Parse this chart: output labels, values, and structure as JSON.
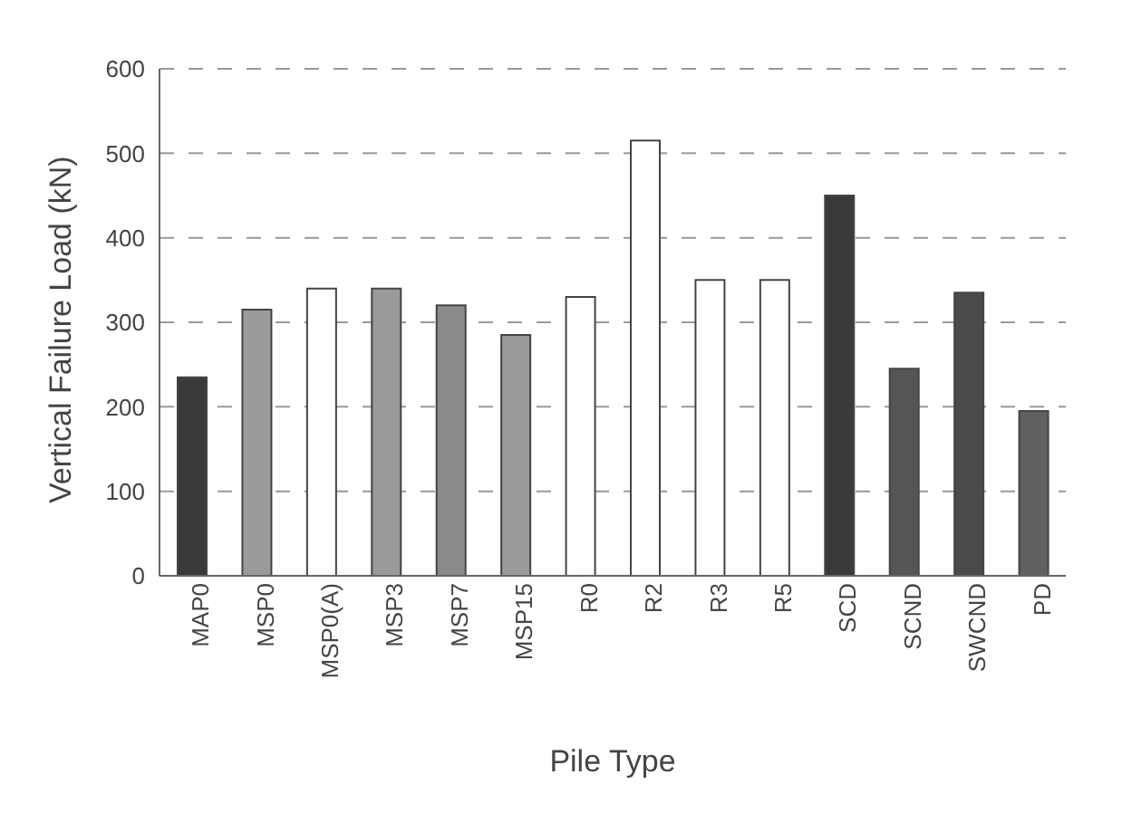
{
  "chart_data": {
    "type": "bar",
    "xlabel": "Pile Type",
    "ylabel": "Vertical Failure Load (kN)",
    "categories": [
      "MAP0",
      "MSP0",
      "MSP0(A)",
      "MSP3",
      "MSP7",
      "MSP15",
      "R0",
      "R2",
      "R3",
      "R5",
      "SCD",
      "SCND",
      "SWCND",
      "PD"
    ],
    "values": [
      235,
      315,
      340,
      340,
      320,
      285,
      330,
      515,
      350,
      350,
      450,
      245,
      335,
      195
    ],
    "colors": [
      "#3a3a3a",
      "#9a9a9a",
      "#ffffff",
      "#9a9a9a",
      "#8a8a8a",
      "#9a9a9a",
      "#ffffff",
      "#ffffff",
      "#ffffff",
      "#ffffff",
      "#3a3a3a",
      "#555555",
      "#4a4a4a",
      "#606060"
    ],
    "ylim": [
      0,
      600
    ],
    "yticks": [
      0,
      100,
      200,
      300,
      400,
      500,
      600
    ],
    "grid": "y"
  }
}
